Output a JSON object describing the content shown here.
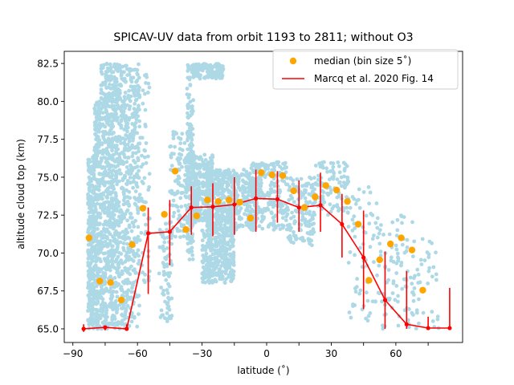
{
  "chart_data": {
    "type": "scatter",
    "title": "SPICAV-UV data from orbit 1193 to 2811; without O3",
    "xlabel": "latitude (˚)",
    "ylabel": "altitude cloud top (km)",
    "xlim": [
      -94,
      91
    ],
    "ylim": [
      64.1,
      83.3
    ],
    "x_ticks": [
      -90,
      -60,
      -30,
      0,
      30,
      60
    ],
    "x_tick_labels": [
      "−90",
      "−60",
      "−30",
      "0",
      "30",
      "60"
    ],
    "y_ticks": [
      65.0,
      67.5,
      70.0,
      72.5,
      75.0,
      77.5,
      80.0,
      82.5
    ],
    "y_tick_labels": [
      "65.0",
      "67.5",
      "70.0",
      "72.5",
      "75.0",
      "77.5",
      "80.0",
      "82.5"
    ],
    "grid": false,
    "legend_position": "top-right",
    "colors": {
      "observations": "#add8e6",
      "median": "#ffa500",
      "reference": "#ff0000"
    },
    "legend": [
      {
        "label": "median (bin size 5˚)",
        "marker": "circle",
        "color": "#ffa500"
      },
      {
        "label": "Marcq et al. 2020 Fig. 14",
        "marker": "line",
        "color": "#ff0000"
      }
    ],
    "observation_clusters": [
      {
        "lat_range": [
          -83,
          -80
        ],
        "alt_range": [
          65.0,
          76.5
        ],
        "n": 300
      },
      {
        "lat_range": [
          -80,
          -77
        ],
        "alt_range": [
          65.0,
          80.0
        ],
        "n": 240
      },
      {
        "lat_range": [
          -77,
          -73
        ],
        "alt_range": [
          65.0,
          82.5
        ],
        "n": 320
      },
      {
        "lat_range": [
          -73,
          -69
        ],
        "alt_range": [
          65.0,
          82.5
        ],
        "n": 340
      },
      {
        "lat_range": [
          -69,
          -64
        ],
        "alt_range": [
          65.0,
          82.5
        ],
        "n": 280
      },
      {
        "lat_range": [
          -64,
          -59
        ],
        "alt_range": [
          65.0,
          82.5
        ],
        "n": 220
      },
      {
        "lat_range": [
          -59,
          -54
        ],
        "alt_range": [
          68.0,
          82.0
        ],
        "n": 60
      },
      {
        "lat_range": [
          -50,
          -44
        ],
        "alt_range": [
          65.5,
          72.0
        ],
        "n": 80
      },
      {
        "lat_range": [
          -45,
          -38
        ],
        "alt_range": [
          71.0,
          78.0
        ],
        "n": 90
      },
      {
        "lat_range": [
          -37,
          -34
        ],
        "alt_range": [
          69.5,
          82.5
        ],
        "n": 160
      },
      {
        "lat_range": [
          -34,
          -20
        ],
        "alt_range": [
          81.5,
          82.5
        ],
        "n": 120
      },
      {
        "lat_range": [
          -38,
          -25
        ],
        "alt_range": [
          72.0,
          76.5
        ],
        "n": 320
      },
      {
        "lat_range": [
          -30,
          -15
        ],
        "alt_range": [
          68.0,
          71.5
        ],
        "n": 320
      },
      {
        "lat_range": [
          -28,
          -14
        ],
        "alt_range": [
          71.5,
          75.5
        ],
        "n": 380
      },
      {
        "lat_range": [
          -18,
          -4
        ],
        "alt_range": [
          71.5,
          75.5
        ],
        "n": 220
      },
      {
        "lat_range": [
          -8,
          10
        ],
        "alt_range": [
          71.5,
          76.0
        ],
        "n": 240
      },
      {
        "lat_range": [
          10,
          22
        ],
        "alt_range": [
          70.5,
          75.0
        ],
        "n": 140
      },
      {
        "lat_range": [
          22,
          38
        ],
        "alt_range": [
          72.5,
          76.0
        ],
        "n": 110
      },
      {
        "lat_range": [
          38,
          52
        ],
        "alt_range": [
          65.5,
          74.5
        ],
        "n": 70
      },
      {
        "lat_range": [
          52,
          68
        ],
        "alt_range": [
          65.0,
          72.5
        ],
        "n": 90
      },
      {
        "lat_range": [
          68,
          80
        ],
        "alt_range": [
          65.0,
          71.0
        ],
        "n": 40
      }
    ],
    "median": {
      "name": "median (bin size 5˚)",
      "x": [
        -82.5,
        -77.5,
        -72.5,
        -67.5,
        -62.5,
        -57.5,
        -47.5,
        -42.5,
        -37.5,
        -32.5,
        -27.5,
        -22.5,
        -17.5,
        -12.5,
        -7.5,
        -2.5,
        2.5,
        7.5,
        12.5,
        17.5,
        22.5,
        27.5,
        32.5,
        37.5,
        42.5,
        47.5,
        52.5,
        57.5,
        62.5,
        67.5,
        72.5
      ],
      "y": [
        71.0,
        68.15,
        68.05,
        66.9,
        70.55,
        72.95,
        72.55,
        75.4,
        71.55,
        72.45,
        73.5,
        73.4,
        73.5,
        73.35,
        72.3,
        75.3,
        75.15,
        75.1,
        74.1,
        73.0,
        73.7,
        74.45,
        74.15,
        73.4,
        71.9,
        68.2,
        69.55,
        70.6,
        71.0,
        70.2,
        67.55
      ]
    },
    "reference": {
      "name": "Marcq et al. 2020 Fig. 14",
      "x": [
        -85,
        -75,
        -65,
        -55,
        -45,
        -35,
        -25,
        -15,
        -5,
        5,
        15,
        25,
        35,
        45,
        55,
        65,
        75,
        85
      ],
      "y": [
        65.0,
        65.1,
        65.0,
        71.3,
        71.4,
        73.0,
        73.05,
        73.2,
        73.6,
        73.55,
        73.0,
        73.15,
        71.9,
        69.7,
        66.9,
        65.3,
        65.05,
        65.05
      ],
      "err_low": [
        64.8,
        64.9,
        64.9,
        67.3,
        69.2,
        71.2,
        71.1,
        71.2,
        71.4,
        72.0,
        71.4,
        71.4,
        69.7,
        66.3,
        65.0,
        65.0,
        65.0,
        65.0
      ],
      "err_high": [
        65.3,
        65.2,
        65.3,
        73.0,
        73.5,
        74.4,
        74.6,
        75.0,
        75.5,
        75.4,
        74.8,
        75.3,
        73.9,
        72.8,
        70.1,
        68.8,
        65.8,
        67.7
      ]
    }
  }
}
